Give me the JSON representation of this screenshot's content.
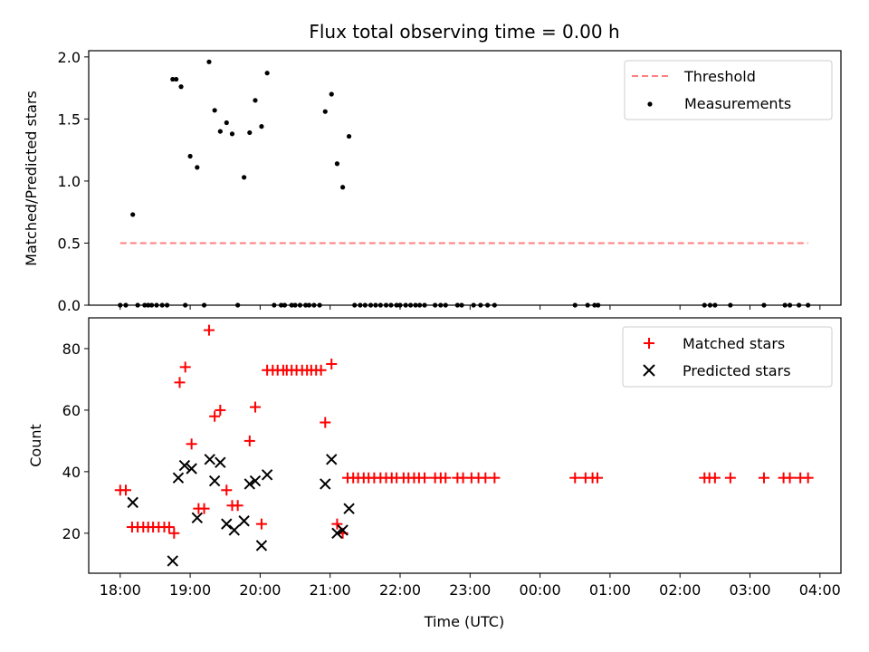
{
  "title": "Flux total observing time = 0.00 h",
  "colors": {
    "threshold": "#ff7f7f",
    "measurements": "#000000",
    "matched": "#ff0000",
    "predicted": "#000000",
    "frame": "#000000"
  },
  "chart_data": [
    {
      "type": "scatter",
      "ylabel": "Matched/Predicted stars",
      "xlim": [
        17.55,
        28.3
      ],
      "ylim": [
        0.0,
        2.05
      ],
      "yticks": [
        0.0,
        0.5,
        1.0,
        1.5,
        2.0
      ],
      "ytick_labels": [
        "0.0",
        "0.5",
        "1.0",
        "1.5",
        "2.0"
      ],
      "xtick_labels_shown": false,
      "legend_position": "top-right",
      "legend": [
        {
          "label": "Threshold",
          "kind": "line-dashed"
        },
        {
          "label": "Measurements",
          "kind": "dot"
        }
      ],
      "threshold": {
        "value": 0.5,
        "x": [
          18.0,
          27.83
        ]
      },
      "measurements": {
        "x": [
          18.0,
          18.08,
          18.18,
          18.25,
          18.35,
          18.4,
          18.45,
          18.52,
          18.6,
          18.67,
          18.75,
          18.8,
          18.87,
          18.93,
          19.0,
          19.1,
          19.2,
          19.27,
          19.35,
          19.43,
          19.52,
          19.6,
          19.68,
          19.77,
          19.85,
          19.93,
          20.02,
          20.1,
          20.2,
          20.3,
          20.35,
          20.45,
          20.5,
          20.57,
          20.65,
          20.7,
          20.77,
          20.85,
          20.93,
          21.02,
          21.1,
          21.18,
          21.27,
          21.35,
          21.43,
          21.5,
          21.58,
          21.65,
          21.72,
          21.8,
          21.87,
          21.95,
          22.0,
          22.08,
          22.15,
          22.22,
          22.28,
          22.35,
          22.5,
          22.58,
          22.65,
          22.82,
          22.88,
          23.05,
          23.15,
          23.25,
          23.35,
          24.5,
          24.68,
          24.78,
          24.83,
          26.35,
          26.43,
          26.5,
          26.72,
          27.2,
          27.5,
          27.57,
          27.7,
          27.83
        ],
        "y": [
          0.0,
          0.0,
          0.73,
          0.0,
          0.0,
          0.0,
          0.0,
          0.0,
          0.0,
          0.0,
          1.82,
          1.82,
          1.76,
          0.0,
          1.2,
          1.11,
          0.0,
          1.96,
          1.57,
          1.4,
          1.47,
          1.38,
          0.0,
          1.03,
          1.39,
          1.65,
          1.44,
          1.87,
          0.0,
          0.0,
          0.0,
          0.0,
          0.0,
          0.0,
          0.0,
          0.0,
          0.0,
          0.0,
          1.56,
          1.7,
          1.14,
          0.95,
          1.36,
          0.0,
          0.0,
          0.0,
          0.0,
          0.0,
          0.0,
          0.0,
          0.0,
          0.0,
          0.0,
          0.0,
          0.0,
          0.0,
          0.0,
          0.0,
          0.0,
          0.0,
          0.0,
          0.0,
          0.0,
          0.0,
          0.0,
          0.0,
          0.0,
          0.0,
          0.0,
          0.0,
          0.0,
          0.0,
          0.0,
          0.0,
          0.0,
          0.0,
          0.0,
          0.0,
          0.0,
          0.0
        ]
      }
    },
    {
      "type": "scatter",
      "xlabel": "Time (UTC)",
      "ylabel": "Count",
      "xlim": [
        17.55,
        28.3
      ],
      "ylim": [
        7,
        90
      ],
      "yticks": [
        20,
        40,
        60,
        80
      ],
      "ytick_labels": [
        "20",
        "40",
        "60",
        "80"
      ],
      "xticks": [
        18,
        19,
        20,
        21,
        22,
        23,
        24,
        25,
        26,
        27,
        28
      ],
      "xtick_labels": [
        "18:00",
        "19:00",
        "20:00",
        "21:00",
        "22:00",
        "23:00",
        "00:00",
        "01:00",
        "02:00",
        "03:00",
        "04:00"
      ],
      "legend_position": "top-right",
      "series": [
        {
          "name": "Matched stars",
          "marker": "plus",
          "x": [
            18.0,
            18.08,
            18.17,
            18.25,
            18.33,
            18.4,
            18.47,
            18.55,
            18.63,
            18.7,
            18.77,
            18.85,
            18.93,
            19.02,
            19.12,
            19.2,
            19.27,
            19.35,
            19.43,
            19.52,
            19.6,
            19.68,
            19.85,
            19.93,
            20.02,
            20.1,
            20.18,
            20.25,
            20.33,
            20.38,
            20.45,
            20.52,
            20.6,
            20.67,
            20.73,
            20.8,
            20.87,
            20.93,
            21.02,
            21.1,
            21.18,
            21.25,
            21.33,
            21.4,
            21.48,
            21.55,
            21.63,
            21.72,
            21.8,
            21.88,
            21.95,
            22.05,
            22.12,
            22.2,
            22.27,
            22.35,
            22.5,
            22.58,
            22.65,
            22.82,
            22.9,
            23.02,
            23.12,
            23.22,
            23.35,
            24.5,
            24.65,
            24.75,
            24.82,
            26.35,
            26.42,
            26.5,
            26.72,
            27.2,
            27.48,
            27.57,
            27.72,
            27.83
          ],
          "y": [
            34,
            34,
            22,
            22,
            22,
            22,
            22,
            22,
            22,
            22,
            20,
            69,
            74,
            49,
            28,
            28,
            86,
            58,
            60,
            34,
            29,
            29,
            50,
            61,
            23,
            73,
            73,
            73,
            73,
            73,
            73,
            73,
            73,
            73,
            73,
            73,
            73,
            56,
            75,
            23,
            20,
            38,
            38,
            38,
            38,
            38,
            38,
            38,
            38,
            38,
            38,
            38,
            38,
            38,
            38,
            38,
            38,
            38,
            38,
            38,
            38,
            38,
            38,
            38,
            38,
            38,
            38,
            38,
            38,
            38,
            38,
            38,
            38,
            38,
            38,
            38,
            38,
            38
          ]
        },
        {
          "name": "Predicted stars",
          "marker": "x",
          "x": [
            18.18,
            18.75,
            18.83,
            18.92,
            19.02,
            19.1,
            19.28,
            19.35,
            19.43,
            19.52,
            19.63,
            19.77,
            19.85,
            19.93,
            20.02,
            20.1,
            20.93,
            21.02,
            21.1,
            21.18,
            21.27
          ],
          "y": [
            30,
            11,
            38,
            42,
            41,
            25,
            44,
            37,
            43,
            23,
            21,
            24,
            36,
            37,
            16,
            39,
            36,
            44,
            20,
            21,
            28
          ]
        }
      ]
    }
  ]
}
